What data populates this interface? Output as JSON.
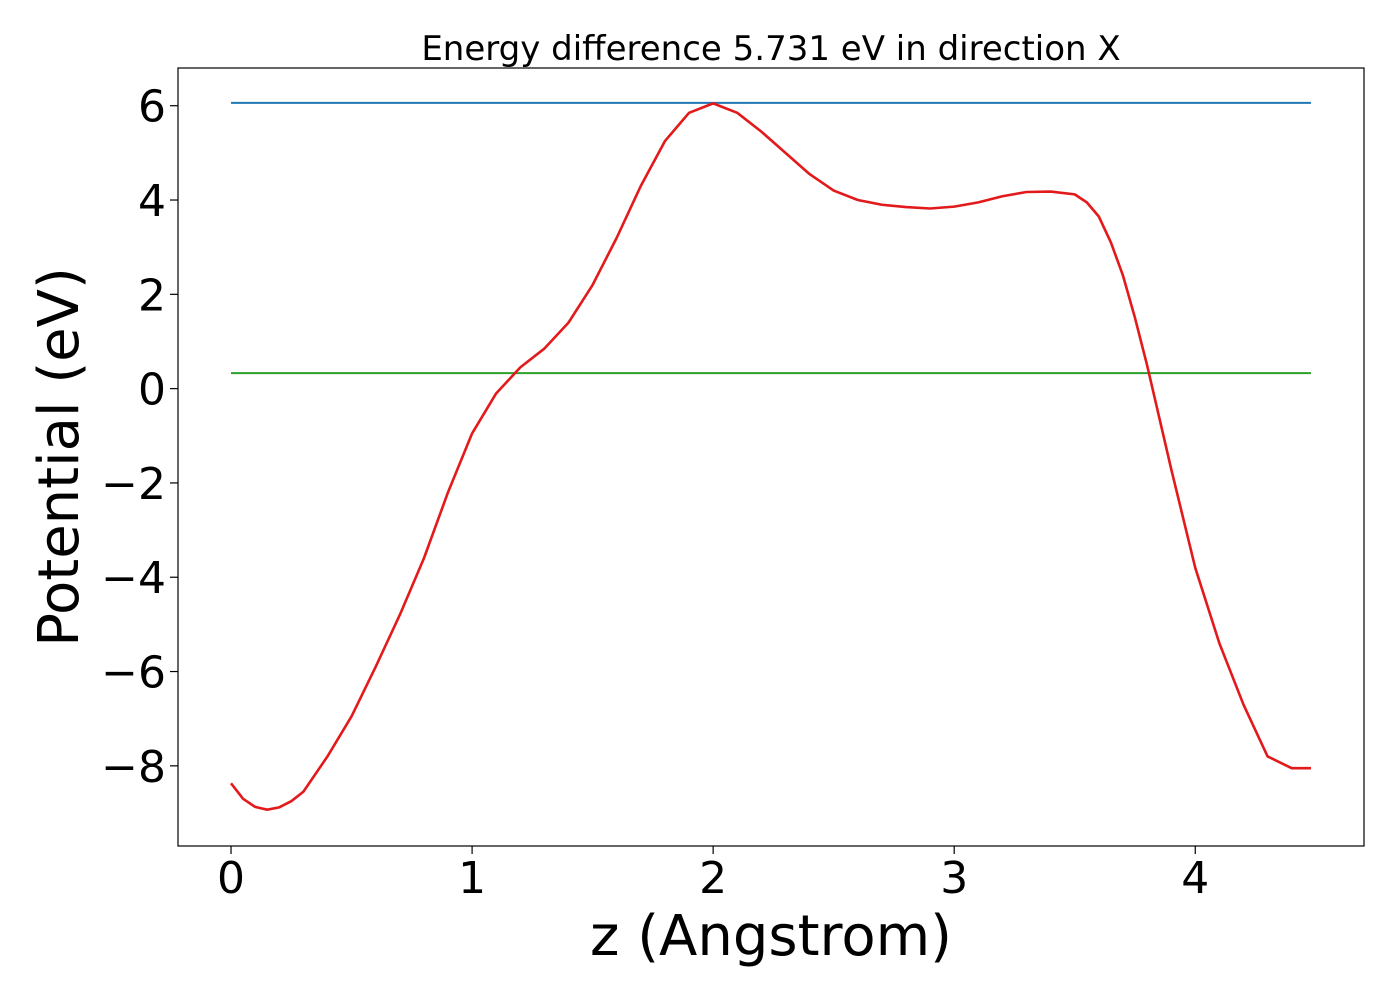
{
  "chart_data": {
    "type": "line",
    "title": "Energy difference 5.731 eV in direction X",
    "xlabel": "z (Angstrom)",
    "ylabel": "Potential (eV)",
    "xlim": [
      -0.22,
      4.7
    ],
    "ylim": [
      -9.7,
      6.8
    ],
    "xticks": [
      0,
      1,
      2,
      3,
      4
    ],
    "xtick_labels": [
      "0",
      "1",
      "2",
      "3",
      "4"
    ],
    "yticks": [
      -8,
      -6,
      -4,
      -2,
      0,
      2,
      4,
      6
    ],
    "ytick_labels": [
      "−8",
      "−6",
      "−4",
      "−2",
      "0",
      "2",
      "4",
      "6"
    ],
    "grid": false,
    "series": [
      {
        "color": "#1f77b4",
        "x": [
          0,
          4.48
        ],
        "y": [
          6.06,
          6.06
        ]
      },
      {
        "color": "#2ca02c",
        "x": [
          0,
          4.48
        ],
        "y": [
          0.33,
          0.33
        ]
      },
      {
        "color": "#e31a1c",
        "x": [
          0,
          0.05,
          0.1,
          0.15,
          0.2,
          0.25,
          0.3,
          0.4,
          0.5,
          0.6,
          0.7,
          0.8,
          0.9,
          1.0,
          1.1,
          1.2,
          1.3,
          1.4,
          1.5,
          1.6,
          1.7,
          1.8,
          1.9,
          2.0,
          2.1,
          2.2,
          2.3,
          2.4,
          2.5,
          2.6,
          2.7,
          2.8,
          2.9,
          3.0,
          3.1,
          3.2,
          3.3,
          3.4,
          3.5,
          3.55,
          3.6,
          3.65,
          3.7,
          3.75,
          3.8,
          3.85,
          3.9,
          4.0,
          4.1,
          4.2,
          4.3,
          4.4,
          4.48
        ],
        "y": [
          -8.37,
          -8.7,
          -8.87,
          -8.93,
          -8.88,
          -8.75,
          -8.55,
          -7.8,
          -6.95,
          -5.9,
          -4.8,
          -3.6,
          -2.2,
          -0.95,
          -0.1,
          0.45,
          0.85,
          1.4,
          2.2,
          3.2,
          4.3,
          5.25,
          5.85,
          6.05,
          5.85,
          5.45,
          5.0,
          4.55,
          4.2,
          4.0,
          3.9,
          3.85,
          3.82,
          3.86,
          3.95,
          4.08,
          4.17,
          4.18,
          4.12,
          3.95,
          3.65,
          3.1,
          2.4,
          1.5,
          0.5,
          -0.6,
          -1.7,
          -3.8,
          -5.4,
          -6.7,
          -7.8,
          -8.05,
          -8.05
        ]
      }
    ]
  }
}
